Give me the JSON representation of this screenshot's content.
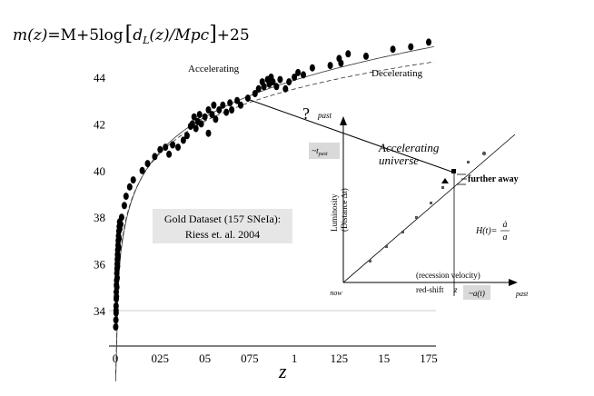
{
  "equation": {
    "text": "m(z)=M+5log[dL(z)/Mpc]+25",
    "parts": {
      "lhs": "m(z)",
      "rhs_start": "=M+5log",
      "d": "d",
      "sub_L": "L",
      "z_arg": "(z)",
      "slash_mpc": "/Mpc",
      "plus25": "+25"
    }
  },
  "chart_data": {
    "type": "scatter",
    "xlabel": "z",
    "ylabel": "",
    "xlim": [
      -0.05,
      1.8
    ],
    "ylim": [
      33.0,
      45.6
    ],
    "x_ticks": [
      {
        "value": 0,
        "label": "0"
      },
      {
        "value": 0.25,
        "label": "025"
      },
      {
        "value": 0.5,
        "label": "05"
      },
      {
        "value": 0.75,
        "label": "075"
      },
      {
        "value": 1.0,
        "label": "1"
      },
      {
        "value": 1.25,
        "label": "125"
      },
      {
        "value": 1.5,
        "label": "15"
      },
      {
        "value": 1.75,
        "label": "175"
      }
    ],
    "y_ticks": [
      {
        "value": 34,
        "label": "34"
      },
      {
        "value": 36,
        "label": "36"
      },
      {
        "value": 38,
        "label": "38"
      },
      {
        "value": 40,
        "label": "40"
      },
      {
        "value": 42,
        "label": "42"
      },
      {
        "value": 44,
        "label": "44"
      }
    ],
    "grid": {
      "horizontal": true,
      "vertical": false
    },
    "series": [
      {
        "name": "Gold Dataset (157 SNeIa)",
        "marker": "filled-ellipse",
        "color": "#000000",
        "points": [
          [
            0.002,
            33.3
          ],
          [
            0.003,
            33.6
          ],
          [
            0.004,
            33.9
          ],
          [
            0.004,
            34.2
          ],
          [
            0.005,
            34.5
          ],
          [
            0.005,
            34.8
          ],
          [
            0.006,
            35.1
          ],
          [
            0.007,
            35.3
          ],
          [
            0.008,
            35.6
          ],
          [
            0.009,
            35.8
          ],
          [
            0.01,
            36.0
          ],
          [
            0.011,
            36.2
          ],
          [
            0.012,
            36.4
          ],
          [
            0.013,
            36.6
          ],
          [
            0.015,
            36.8
          ],
          [
            0.016,
            37.0
          ],
          [
            0.018,
            37.2
          ],
          [
            0.02,
            37.4
          ],
          [
            0.022,
            37.6
          ],
          [
            0.024,
            37.8
          ],
          [
            0.004,
            34.0
          ],
          [
            0.006,
            34.6
          ],
          [
            0.008,
            35.0
          ],
          [
            0.01,
            35.4
          ],
          [
            0.012,
            35.9
          ],
          [
            0.014,
            36.3
          ],
          [
            0.017,
            36.7
          ],
          [
            0.021,
            37.1
          ],
          [
            0.025,
            37.5
          ],
          [
            0.03,
            37.7
          ],
          [
            0.035,
            38.0
          ],
          [
            0.05,
            38.5
          ],
          [
            0.06,
            38.9
          ],
          [
            0.08,
            39.3
          ],
          [
            0.1,
            39.6
          ],
          [
            0.15,
            40.0
          ],
          [
            0.18,
            40.3
          ],
          [
            0.22,
            40.6
          ],
          [
            0.25,
            40.9
          ],
          [
            0.28,
            41.0
          ],
          [
            0.3,
            40.7
          ],
          [
            0.32,
            41.1
          ],
          [
            0.35,
            41.0
          ],
          [
            0.38,
            41.3
          ],
          [
            0.4,
            41.5
          ],
          [
            0.42,
            41.9
          ],
          [
            0.43,
            42.0
          ],
          [
            0.44,
            42.3
          ],
          [
            0.45,
            41.8
          ],
          [
            0.46,
            42.1
          ],
          [
            0.47,
            42.4
          ],
          [
            0.48,
            42.0
          ],
          [
            0.5,
            42.3
          ],
          [
            0.52,
            42.6
          ],
          [
            0.52,
            41.6
          ],
          [
            0.54,
            42.4
          ],
          [
            0.55,
            42.8
          ],
          [
            0.56,
            42.2
          ],
          [
            0.58,
            42.6
          ],
          [
            0.6,
            42.8
          ],
          [
            0.62,
            42.5
          ],
          [
            0.64,
            42.9
          ],
          [
            0.65,
            42.6
          ],
          [
            0.68,
            43.0
          ],
          [
            0.7,
            42.8
          ],
          [
            0.74,
            43.1
          ],
          [
            0.78,
            43.3
          ],
          [
            0.8,
            43.5
          ],
          [
            0.82,
            43.8
          ],
          [
            0.83,
            43.6
          ],
          [
            0.85,
            43.9
          ],
          [
            0.86,
            43.7
          ],
          [
            0.87,
            44.0
          ],
          [
            0.88,
            43.8
          ],
          [
            0.9,
            43.6
          ],
          [
            0.92,
            43.9
          ],
          [
            0.95,
            43.5
          ],
          [
            0.97,
            43.8
          ],
          [
            1.0,
            44.0
          ],
          [
            1.02,
            44.2
          ],
          [
            1.05,
            44.1
          ],
          [
            1.1,
            44.4
          ],
          [
            1.2,
            44.5
          ],
          [
            1.25,
            44.8
          ],
          [
            1.26,
            44.6
          ],
          [
            1.3,
            45.0
          ],
          [
            1.4,
            44.9
          ],
          [
            1.55,
            45.2
          ],
          [
            1.65,
            45.3
          ],
          [
            1.75,
            45.5
          ]
        ]
      }
    ],
    "curves": [
      {
        "name": "Accelerating",
        "style": "solid"
      },
      {
        "name": "Decelerating",
        "style": "dashed"
      }
    ]
  },
  "annotations": {
    "accelerating": "Accelerating",
    "decelerating": "Decelerating",
    "question": "?",
    "gold_line1": "Gold Dataset (157 SNeIa):",
    "gold_line2": "Riess et. al. 2004"
  },
  "inset": {
    "y_axis_label_1": "Luminosity",
    "y_axis_label_2": "(Distance ∆t)",
    "past_top": "past",
    "t_past_badge": "~t",
    "t_past_sub": "past",
    "accelerating_universe_1": "Accelerating",
    "accelerating_universe_2": "universe",
    "further_away": "further away",
    "hubble_lhs": "H(t)=",
    "hubble_num": "ȧ",
    "hubble_den": "a",
    "now": "now",
    "recession": "(recession velocity)",
    "redshift": "red-shift",
    "z": "z",
    "a_t_badge": "~a(t)",
    "past_right": "past"
  }
}
